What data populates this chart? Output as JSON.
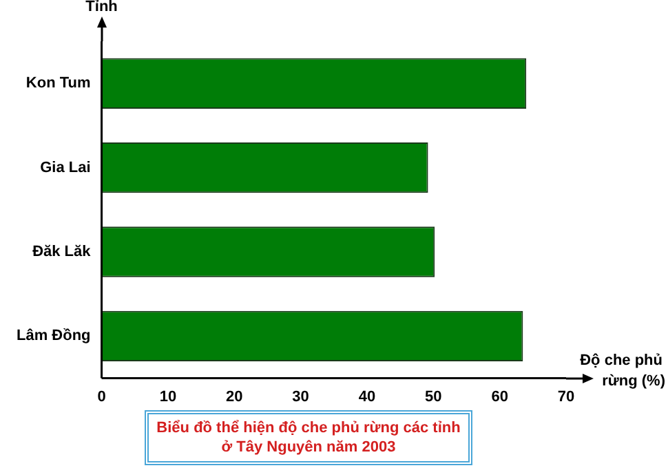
{
  "chart_data": {
    "type": "bar",
    "orientation": "horizontal",
    "title": "Biểu đồ thể hiện độ che phủ rừng các tỉnh ở Tây Nguyên năm 2003",
    "xlabel": "Độ che phủ rừng (%)",
    "ylabel": "Tỉnh",
    "categories": [
      "Kon Tum",
      "Gia Lai",
      "Đăk Lăk",
      "Lâm Đồng"
    ],
    "values": [
      64.0,
      49.2,
      50.2,
      63.5
    ],
    "color": "#007d07",
    "xlim": [
      0,
      70
    ],
    "xticks": [
      0,
      10,
      20,
      30,
      40,
      50,
      60,
      70
    ],
    "grid": false,
    "legend": false
  }
}
